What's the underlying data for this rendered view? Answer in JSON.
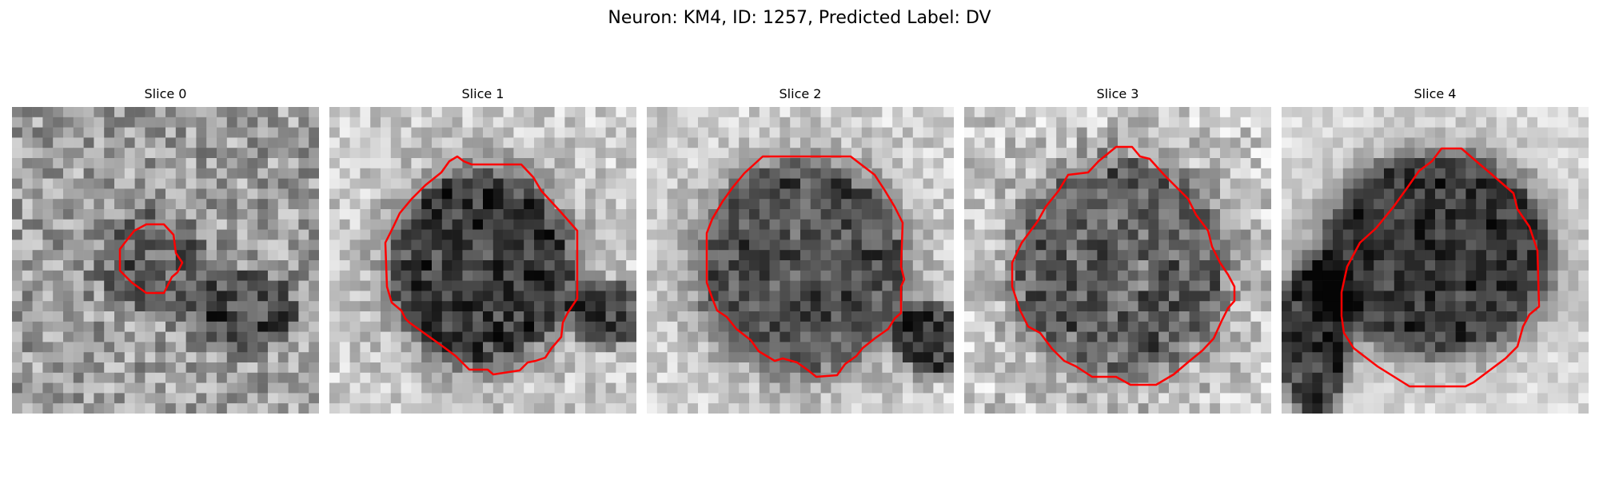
{
  "figure": {
    "title": "Neuron: KM4, ID: 1257, Predicted Label: DV"
  },
  "colors": {
    "contour": "#ff0000",
    "background": "#ffffff"
  },
  "panels": [
    {
      "title": "Slice 0",
      "image": "grayscale-microscopy-patch",
      "contour": "small-red-outline"
    },
    {
      "title": "Slice 1",
      "image": "grayscale-microscopy-patch",
      "contour": "red-outline"
    },
    {
      "title": "Slice 2",
      "image": "grayscale-microscopy-patch",
      "contour": "red-outline"
    },
    {
      "title": "Slice 3",
      "image": "grayscale-microscopy-patch",
      "contour": "red-outline"
    },
    {
      "title": "Slice 4",
      "image": "grayscale-microscopy-patch",
      "contour": "red-outline"
    }
  ]
}
